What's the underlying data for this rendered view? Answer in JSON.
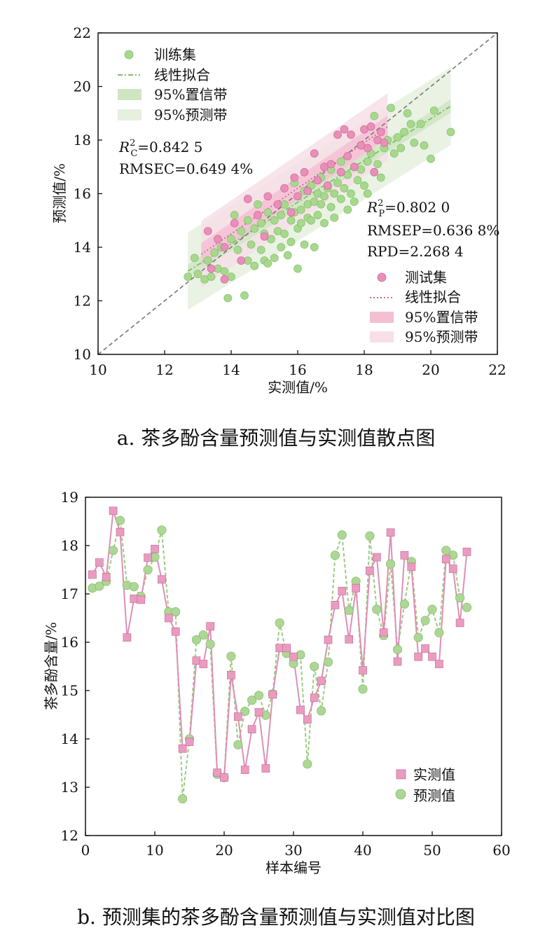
{
  "captions": {
    "a": "a. 茶多酚含量预测值与实测值散点图",
    "b": "b. 预测集的茶多酚含量预测值与实测值对比图"
  },
  "colors": {
    "train": "#a8d88e",
    "train_edge": "#7fbf66",
    "test": "#e98fb8",
    "test_edge": "#c96a98",
    "train_band_conf": "#cfe6c3",
    "train_band_pred": "#e6f0df",
    "test_band_conf": "#f4bfd3",
    "test_band_pred": "#f7dfe8",
    "measured_marker": "#ea9cc0",
    "predicted_marker": "#acd794",
    "diag": "#777777"
  },
  "chart_data": [
    {
      "type": "scatter",
      "xlabel": "实测值/%",
      "ylabel": "预测值/%",
      "xlim": [
        10,
        22
      ],
      "ylim": [
        10,
        22
      ],
      "xticks": [
        10,
        12,
        14,
        16,
        18,
        20,
        22
      ],
      "yticks": [
        10,
        12,
        14,
        16,
        18,
        20,
        22
      ],
      "grid": false,
      "diagonal": true,
      "legend_train": [
        "训练集",
        "线性拟合",
        "95%置信带",
        "95%预测带"
      ],
      "legend_test": [
        "测试集",
        "线性拟合",
        "95%置信带",
        "95%预测带"
      ],
      "annotation_train": {
        "r2_label": "R",
        "r2_sup": "2",
        "r2_sub": "C",
        "r2_value": "=0.842 5",
        "rmse": "RMSEC=0.649 4%"
      },
      "annotation_test": {
        "r2_label": "R",
        "r2_sup": "2",
        "r2_sub": "P",
        "r2_value": "=0.802 0",
        "rmse": "RMSEP=0.636 8%",
        "rpd": "RPD=2.268 4"
      },
      "train_fit": {
        "x_range": [
          12.7,
          20.6
        ],
        "slope": 0.78,
        "intercept": 3.2,
        "conf": 0.25,
        "pred": 1.45
      },
      "test_fit": {
        "x_range": [
          13.1,
          18.7
        ],
        "slope": 0.85,
        "intercept": 2.6,
        "conf": 0.42,
        "pred": 1.25
      },
      "train_points": [
        [
          12.7,
          12.9
        ],
        [
          12.9,
          13.6
        ],
        [
          13.0,
          13.0
        ],
        [
          13.2,
          12.8
        ],
        [
          13.3,
          13.5
        ],
        [
          13.4,
          12.9
        ],
        [
          13.5,
          13.8
        ],
        [
          13.6,
          13.2
        ],
        [
          13.7,
          14.0
        ],
        [
          13.8,
          13.1
        ],
        [
          13.9,
          12.1
        ],
        [
          14.0,
          12.9
        ],
        [
          14.0,
          14.3
        ],
        [
          14.1,
          15.2
        ],
        [
          14.2,
          13.9
        ],
        [
          14.3,
          14.6
        ],
        [
          14.4,
          12.2
        ],
        [
          14.5,
          13.5
        ],
        [
          14.5,
          15.0
        ],
        [
          14.6,
          14.1
        ],
        [
          14.7,
          13.3
        ],
        [
          14.7,
          14.7
        ],
        [
          14.8,
          15.6
        ],
        [
          14.9,
          13.9
        ],
        [
          14.9,
          14.9
        ],
        [
          15.0,
          13.5
        ],
        [
          15.0,
          14.5
        ],
        [
          15.1,
          15.3
        ],
        [
          15.1,
          13.4
        ],
        [
          15.2,
          14.3
        ],
        [
          15.3,
          15.0
        ],
        [
          15.3,
          13.6
        ],
        [
          15.4,
          14.6
        ],
        [
          15.5,
          15.2
        ],
        [
          15.5,
          14.0
        ],
        [
          15.6,
          15.6
        ],
        [
          15.6,
          14.5
        ],
        [
          15.7,
          13.7
        ],
        [
          15.8,
          15.0
        ],
        [
          15.8,
          14.2
        ],
        [
          15.9,
          16.4
        ],
        [
          15.9,
          15.3
        ],
        [
          16.0,
          14.7
        ],
        [
          16.0,
          13.2
        ],
        [
          16.1,
          15.4
        ],
        [
          16.1,
          14.9
        ],
        [
          16.2,
          16.1
        ],
        [
          16.2,
          14.1
        ],
        [
          16.3,
          15.6
        ],
        [
          16.3,
          15.1
        ],
        [
          16.4,
          16.3
        ],
        [
          16.4,
          15.0
        ],
        [
          16.5,
          14.0
        ],
        [
          16.5,
          15.7
        ],
        [
          16.6,
          16.0
        ],
        [
          16.6,
          15.2
        ],
        [
          16.7,
          15.6
        ],
        [
          16.7,
          16.6
        ],
        [
          16.8,
          15.9
        ],
        [
          16.8,
          14.9
        ],
        [
          16.9,
          16.2
        ],
        [
          17.0,
          15.5
        ],
        [
          17.0,
          16.9
        ],
        [
          17.1,
          16.0
        ],
        [
          17.1,
          15.1
        ],
        [
          17.2,
          16.4
        ],
        [
          17.3,
          15.8
        ],
        [
          17.3,
          17.2
        ],
        [
          17.4,
          16.2
        ],
        [
          17.5,
          16.7
        ],
        [
          17.5,
          15.4
        ],
        [
          17.6,
          16.0
        ],
        [
          17.7,
          17.0
        ],
        [
          17.7,
          15.7
        ],
        [
          17.8,
          16.5
        ],
        [
          17.9,
          16.9
        ],
        [
          17.9,
          17.8
        ],
        [
          18.0,
          16.3
        ],
        [
          18.1,
          17.2
        ],
        [
          18.1,
          16.0
        ],
        [
          18.2,
          17.5
        ],
        [
          18.3,
          16.8
        ],
        [
          18.3,
          18.9
        ],
        [
          18.4,
          17.1
        ],
        [
          18.5,
          16.6
        ],
        [
          18.6,
          17.7
        ],
        [
          18.7,
          18.0
        ],
        [
          18.8,
          19.2
        ],
        [
          18.9,
          17.5
        ],
        [
          19.0,
          18.1
        ],
        [
          19.1,
          17.7
        ],
        [
          19.2,
          18.3
        ],
        [
          19.3,
          19.0
        ],
        [
          19.4,
          18.6
        ],
        [
          19.5,
          17.9
        ],
        [
          19.7,
          18.6
        ],
        [
          19.8,
          17.8
        ],
        [
          20.0,
          17.3
        ],
        [
          20.1,
          19.1
        ],
        [
          20.6,
          18.3
        ]
      ],
      "test_points": [
        [
          13.3,
          14.6
        ],
        [
          13.4,
          13.2
        ],
        [
          13.6,
          14.3
        ],
        [
          13.8,
          12.8
        ],
        [
          13.8,
          14.0
        ],
        [
          14.1,
          14.9
        ],
        [
          14.3,
          13.5
        ],
        [
          14.5,
          15.8
        ],
        [
          14.8,
          15.2
        ],
        [
          15.0,
          14.4
        ],
        [
          15.1,
          15.9
        ],
        [
          15.4,
          15.6
        ],
        [
          15.6,
          16.2
        ],
        [
          15.8,
          15.3
        ],
        [
          15.9,
          16.6
        ],
        [
          16.0,
          15.9
        ],
        [
          16.2,
          16.8
        ],
        [
          16.3,
          16.1
        ],
        [
          16.5,
          17.5
        ],
        [
          16.6,
          16.5
        ],
        [
          16.8,
          17.0
        ],
        [
          16.9,
          16.3
        ],
        [
          17.0,
          17.1
        ],
        [
          17.2,
          18.2
        ],
        [
          17.3,
          16.8
        ],
        [
          17.4,
          18.4
        ],
        [
          17.5,
          17.4
        ],
        [
          17.6,
          18.2
        ],
        [
          17.7,
          17.0
        ],
        [
          17.9,
          17.8
        ],
        [
          18.0,
          18.4
        ],
        [
          18.1,
          17.7
        ],
        [
          18.2,
          18.5
        ],
        [
          18.3,
          16.8
        ],
        [
          18.4,
          18.0
        ],
        [
          18.5,
          18.3
        ],
        [
          18.6,
          17.9
        ]
      ]
    },
    {
      "type": "line",
      "xlabel": "样本编号",
      "ylabel": "茶多酚含量/%",
      "xlim": [
        0,
        60
      ],
      "ylim": [
        12,
        19
      ],
      "xticks": [
        0,
        10,
        20,
        30,
        40,
        50,
        60
      ],
      "yticks": [
        12,
        13,
        14,
        15,
        16,
        17,
        18,
        19
      ],
      "grid": false,
      "legend_position": "bottom-right",
      "series": [
        {
          "name": "实测值",
          "values": [
            17.4,
            17.65,
            17.35,
            18.72,
            18.28,
            16.1,
            16.9,
            16.88,
            17.75,
            17.93,
            17.3,
            16.5,
            16.22,
            13.8,
            13.94,
            15.62,
            15.55,
            16.33,
            13.3,
            13.2,
            15.32,
            14.46,
            13.36,
            14.2,
            14.55,
            13.39,
            14.92,
            15.88,
            15.88,
            15.7,
            14.6,
            14.4,
            14.85,
            15.2,
            16.05,
            16.77,
            17.06,
            16.06,
            17.12,
            15.42,
            17.48,
            17.76,
            16.2,
            18.27,
            15.6,
            17.8,
            17.56,
            15.7,
            15.87,
            15.7,
            15.55,
            17.72,
            17.52,
            16.4,
            17.87
          ]
        },
        {
          "name": "预测值",
          "values": [
            17.12,
            17.16,
            17.26,
            17.9,
            18.52,
            17.18,
            17.15,
            16.95,
            17.5,
            17.76,
            18.32,
            16.63,
            16.63,
            12.76,
            14.0,
            16.05,
            16.15,
            15.96,
            13.27,
            13.2,
            15.71,
            13.88,
            14.57,
            14.8,
            14.9,
            14.49,
            14.93,
            16.4,
            15.77,
            15.56,
            15.74,
            13.48,
            15.5,
            14.58,
            15.59,
            17.8,
            18.22,
            16.66,
            17.26,
            15.03,
            18.2,
            16.68,
            16.14,
            17.62,
            15.85,
            16.79,
            17.67,
            16.1,
            16.45,
            16.68,
            16.2,
            17.9,
            17.8,
            16.92,
            16.72
          ]
        }
      ]
    }
  ]
}
